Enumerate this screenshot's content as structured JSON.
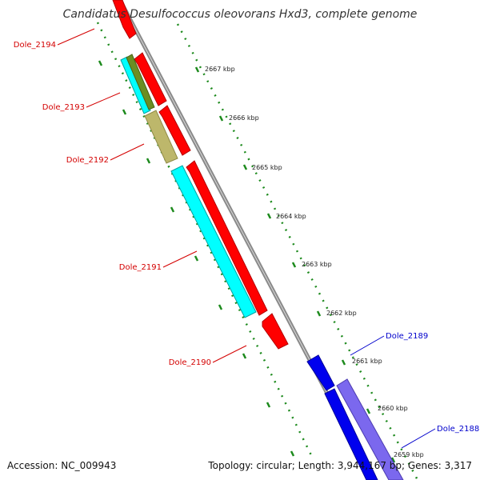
{
  "title": "Candidatus Desulfococcus oleovorans Hxd3, complete genome",
  "footer": {
    "accession": "Accession: NC_009943",
    "info": "Topology: circular; Length: 3,944,167 bp; Genes: 3,317"
  },
  "colors": {
    "backbone": "#8a8a8a",
    "tick": "#1d8a1d",
    "reverse_label": "#d40000",
    "forward_label": "#0000cc",
    "gene_red": "#ff0000",
    "gene_blue": "#0000ee",
    "gene_slate": "#7b68ee",
    "gene_cyan": "#00ffff",
    "gene_khaki": "#bdb76b",
    "gene_olive": "#6b8e23"
  },
  "scale_labels": [
    "2667 kbp",
    "2666 kbp",
    "2665 kbp",
    "2664 kbp",
    "2663 kbp",
    "2662 kbp",
    "2661 kbp",
    "2660 kbp",
    "2659 kbp"
  ],
  "gene_labels": {
    "dole_2194": "Dole_2194",
    "dole_2193": "Dole_2193",
    "dole_2192": "Dole_2192",
    "dole_2191": "Dole_2191",
    "dole_2190": "Dole_2190",
    "dole_2189": "Dole_2189",
    "dole_2188": "Dole_2188"
  }
}
